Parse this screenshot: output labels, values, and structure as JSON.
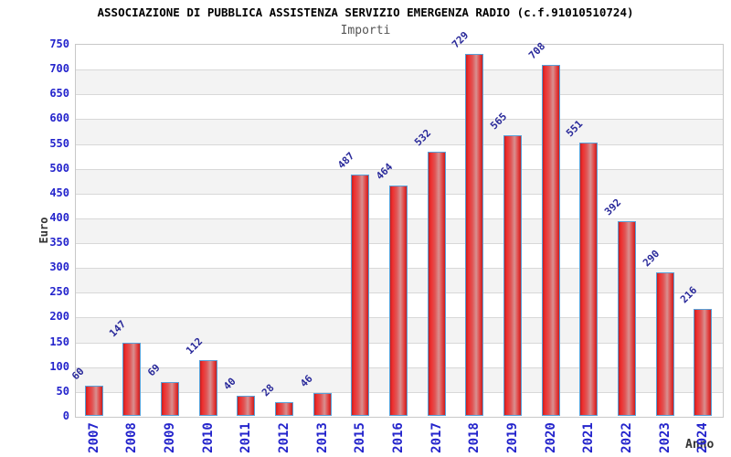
{
  "chart_data": {
    "type": "bar",
    "title": "ASSOCIAZIONE DI PUBBLICA ASSISTENZA SERVIZIO EMERGENZA RADIO (c.f.91010510724)",
    "subtitle": "Importi",
    "categories": [
      "2007",
      "2008",
      "2009",
      "2010",
      "2011",
      "2012",
      "2013",
      "2015",
      "2016",
      "2017",
      "2018",
      "2019",
      "2020",
      "2021",
      "2022",
      "2023",
      "2024"
    ],
    "values": [
      60,
      147,
      69,
      112,
      40,
      28,
      46,
      487,
      464,
      532,
      729,
      565,
      708,
      551,
      392,
      290,
      216
    ],
    "xlabel": "Anno",
    "ylabel": "Euro",
    "ylim": [
      0,
      750
    ],
    "ytick_step": 50,
    "yticks": [
      0,
      50,
      100,
      150,
      200,
      250,
      300,
      350,
      400,
      450,
      500,
      550,
      600,
      650,
      700,
      750
    ],
    "grid": "horizontal-bands",
    "legend": "none",
    "colors": {
      "bar_fill": "#e02424",
      "bar_border": "#58a0d8",
      "value_label": "#29299a",
      "axis_tick_label": "#2424cc",
      "axis_title": "#333333",
      "title": "#000000",
      "subtitle": "#555555",
      "band_gray": "#f3f3f3",
      "gridline": "#d8d8d8"
    }
  }
}
